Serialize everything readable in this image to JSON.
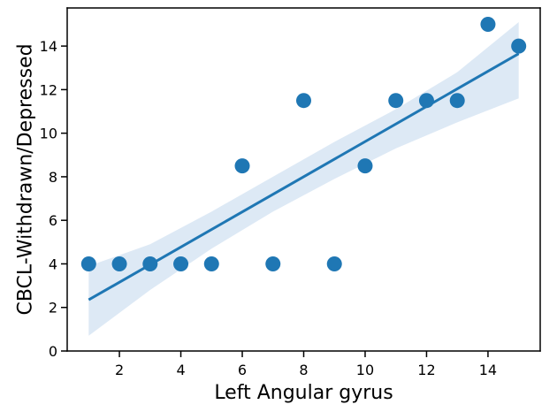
{
  "chart_data": {
    "type": "scatter",
    "title": "",
    "xlabel": "Left Angular gyrus",
    "ylabel": "CBCL-Withdrawn/Depressed",
    "xlim": [
      0.3,
      15.7
    ],
    "ylim": [
      0,
      15.75
    ],
    "xticks": [
      2,
      4,
      6,
      8,
      10,
      12,
      14
    ],
    "yticks": [
      0,
      2,
      4,
      6,
      8,
      10,
      12,
      14
    ],
    "grid": false,
    "points": {
      "x": [
        1,
        2,
        3,
        4,
        5,
        6,
        7,
        8,
        9,
        10,
        11,
        12,
        13,
        14,
        15
      ],
      "y": [
        4,
        4,
        4,
        4,
        4,
        8.5,
        4,
        11.5,
        4,
        8.5,
        11.5,
        11.5,
        11.5,
        15,
        14
      ]
    },
    "regression_line": {
      "x": [
        1,
        15
      ],
      "y": [
        2.35,
        13.65
      ]
    },
    "confidence_band": {
      "x": [
        1,
        3,
        5,
        7,
        9,
        11,
        13,
        15
      ],
      "upper": [
        3.9,
        4.9,
        6.4,
        8.0,
        9.6,
        11.1,
        12.8,
        15.1
      ],
      "lower": [
        0.7,
        2.8,
        4.7,
        6.4,
        7.9,
        9.3,
        10.5,
        11.6
      ]
    },
    "colors": {
      "points": "#1f77b4",
      "line": "#1f77b4",
      "band": "#dde9f5",
      "axes": "#000000"
    }
  }
}
